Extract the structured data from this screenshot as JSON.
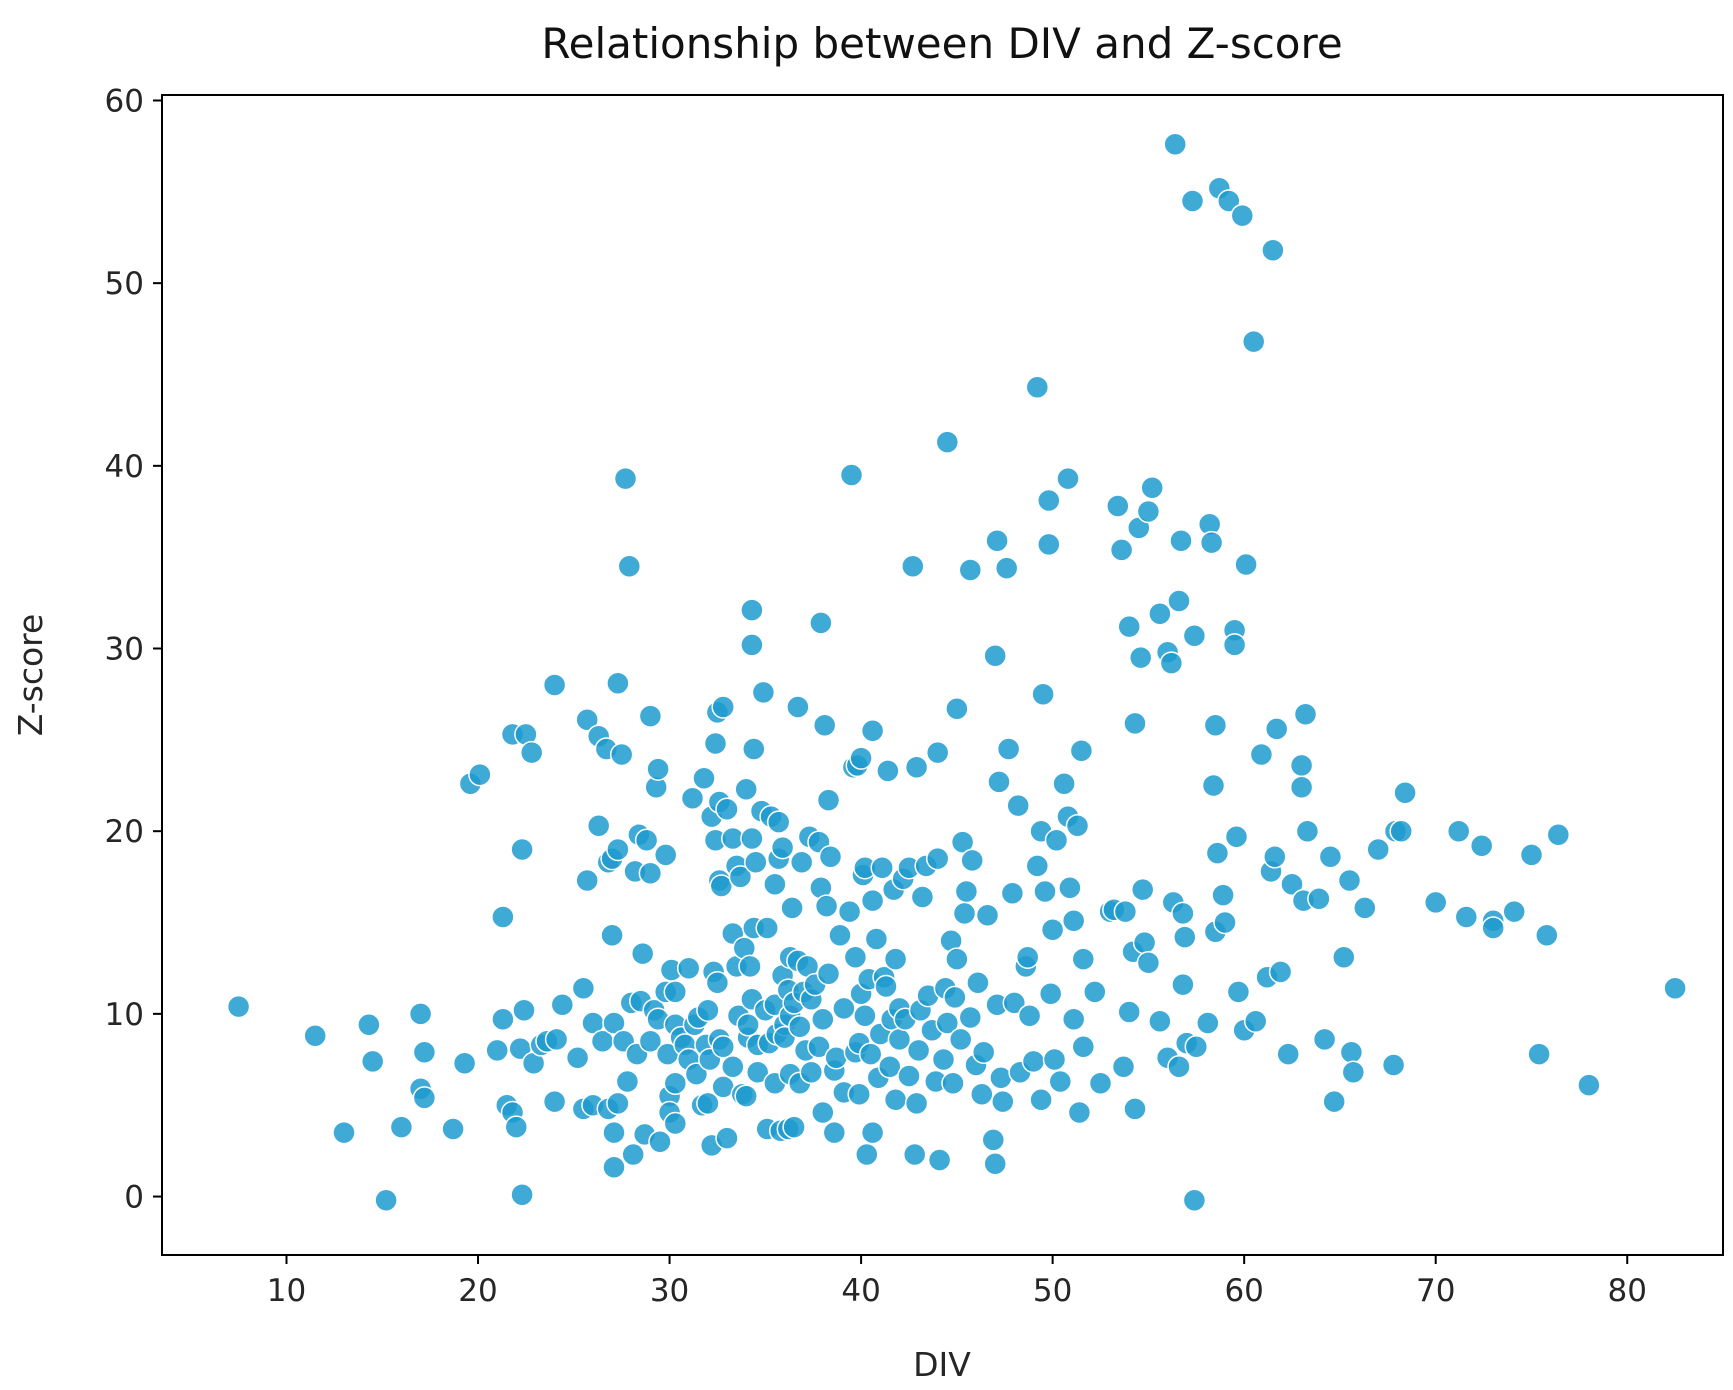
{
  "chart_data": {
    "type": "scatter",
    "title": "Relationship between DIV and Z-score",
    "xlabel": "DIV",
    "ylabel": "Z-score",
    "xlim": [
      3.5,
      85
    ],
    "ylim": [
      -3.2,
      60.3
    ],
    "xticks": [
      10,
      20,
      30,
      40,
      50,
      60,
      70,
      80
    ],
    "xtick_labels": [
      "10",
      "20",
      "30",
      "40",
      "50",
      "60",
      "70",
      "80"
    ],
    "yticks": [
      0,
      10,
      20,
      30,
      40,
      50,
      60
    ],
    "ytick_labels": [
      "0",
      "10",
      "20",
      "30",
      "40",
      "50",
      "60"
    ],
    "grid": false,
    "legend": "none",
    "marker_color": "#1f9bcf",
    "marker_edge": "#ffffff",
    "marker_alpha": 0.85,
    "points": [
      [
        7.5,
        10.4
      ],
      [
        11.5,
        8.8
      ],
      [
        13,
        3.5
      ],
      [
        14.3,
        9.4
      ],
      [
        14.5,
        7.4
      ],
      [
        15.2,
        -0.2
      ],
      [
        16,
        3.8
      ],
      [
        17,
        10
      ],
      [
        17,
        5.9
      ],
      [
        17.2,
        5.4
      ],
      [
        17.2,
        7.9
      ],
      [
        18.7,
        3.7
      ],
      [
        19.3,
        7.3
      ],
      [
        19.6,
        22.6
      ],
      [
        20.1,
        23.1
      ],
      [
        21,
        8
      ],
      [
        21.3,
        15.3
      ],
      [
        21.3,
        9.7
      ],
      [
        21.5,
        5
      ],
      [
        21.8,
        25.3
      ],
      [
        21.8,
        4.6
      ],
      [
        22,
        3.8
      ],
      [
        22.2,
        8.1
      ],
      [
        22.3,
        0.1
      ],
      [
        22.3,
        19
      ],
      [
        22.4,
        10.2
      ],
      [
        22.5,
        25.3
      ],
      [
        22.8,
        24.3
      ],
      [
        22.9,
        7.3
      ],
      [
        23.3,
        8.3
      ],
      [
        23.6,
        8.5
      ],
      [
        24,
        28
      ],
      [
        24,
        5.2
      ],
      [
        24.1,
        8.6
      ],
      [
        24.4,
        10.5
      ],
      [
        25.2,
        7.6
      ],
      [
        25.5,
        11.4
      ],
      [
        25.5,
        4.8
      ],
      [
        25.7,
        26.1
      ],
      [
        25.7,
        17.3
      ],
      [
        26,
        5
      ],
      [
        26,
        9.5
      ],
      [
        26.3,
        20.3
      ],
      [
        26.3,
        25.2
      ],
      [
        26.5,
        8.5
      ],
      [
        26.7,
        24.5
      ],
      [
        26.8,
        4.8
      ],
      [
        26.8,
        18.3
      ],
      [
        27,
        14.3
      ],
      [
        27,
        18.5
      ],
      [
        27.1,
        1.6
      ],
      [
        27.1,
        3.5
      ],
      [
        27.1,
        9.5
      ],
      [
        27.3,
        28.1
      ],
      [
        27.3,
        19
      ],
      [
        27.3,
        5.1
      ],
      [
        27.5,
        24.2
      ],
      [
        27.6,
        8.5
      ],
      [
        27.7,
        39.3
      ],
      [
        27.8,
        6.3
      ],
      [
        27.9,
        34.5
      ],
      [
        28,
        10.6
      ],
      [
        28.1,
        2.3
      ],
      [
        28.2,
        17.8
      ],
      [
        28.3,
        7.8
      ],
      [
        28.4,
        19.8
      ],
      [
        28.5,
        10.7
      ],
      [
        28.6,
        13.3
      ],
      [
        28.7,
        3.4
      ],
      [
        28.8,
        19.5
      ],
      [
        29,
        26.3
      ],
      [
        29,
        8.5
      ],
      [
        29,
        17.7
      ],
      [
        29.2,
        10.2
      ],
      [
        29.3,
        22.4
      ],
      [
        29.4,
        23.4
      ],
      [
        29.4,
        9.7
      ],
      [
        29.5,
        3
      ],
      [
        29.8,
        18.7
      ],
      [
        29.8,
        11.2
      ],
      [
        29.9,
        7.8
      ],
      [
        30,
        5.5
      ],
      [
        30,
        4.6
      ],
      [
        30.1,
        12.4
      ],
      [
        30.3,
        6.2
      ],
      [
        30.3,
        9.4
      ],
      [
        30.3,
        4
      ],
      [
        30.3,
        11.2
      ],
      [
        30.6,
        8.7
      ],
      [
        30.8,
        8.3
      ],
      [
        31,
        12.5
      ],
      [
        31,
        7.5
      ],
      [
        31.2,
        21.8
      ],
      [
        31.3,
        9.4
      ],
      [
        31.4,
        6.7
      ],
      [
        31.5,
        9.8
      ],
      [
        31.7,
        5
      ],
      [
        31.8,
        22.9
      ],
      [
        31.9,
        8.3
      ],
      [
        32,
        10.2
      ],
      [
        32,
        5.1
      ],
      [
        32.1,
        7.5
      ],
      [
        32.2,
        2.8
      ],
      [
        32.2,
        20.8
      ],
      [
        32.3,
        12.3
      ],
      [
        32.4,
        19.5
      ],
      [
        32.4,
        24.8
      ],
      [
        32.5,
        11.7
      ],
      [
        32.5,
        26.5
      ],
      [
        32.6,
        8.6
      ],
      [
        32.6,
        21.6
      ],
      [
        32.6,
        17.3
      ],
      [
        32.7,
        17
      ],
      [
        32.8,
        26.8
      ],
      [
        32.8,
        8.2
      ],
      [
        32.8,
        6
      ],
      [
        33,
        21.2
      ],
      [
        33,
        3.2
      ],
      [
        33.3,
        14.4
      ],
      [
        33.3,
        19.6
      ],
      [
        33.3,
        7.1
      ],
      [
        33.5,
        18.1
      ],
      [
        33.5,
        12.6
      ],
      [
        33.6,
        9.9
      ],
      [
        33.7,
        17.5
      ],
      [
        33.8,
        5.6
      ],
      [
        33.9,
        13.6
      ],
      [
        34,
        22.3
      ],
      [
        34,
        5.5
      ],
      [
        34.1,
        8.7
      ],
      [
        34.1,
        9.4
      ],
      [
        34.2,
        12.6
      ],
      [
        34.3,
        10.8
      ],
      [
        34.3,
        32.1
      ],
      [
        34.3,
        30.2
      ],
      [
        34.3,
        19.6
      ],
      [
        34.4,
        14.7
      ],
      [
        34.4,
        24.5
      ],
      [
        34.5,
        18.3
      ],
      [
        34.6,
        6.8
      ],
      [
        34.6,
        8.3
      ],
      [
        34.8,
        21.1
      ],
      [
        34.9,
        27.6
      ],
      [
        35,
        10.2
      ],
      [
        35.1,
        14.7
      ],
      [
        35.1,
        3.7
      ],
      [
        35.2,
        8.4
      ],
      [
        35.3,
        20.8
      ],
      [
        35.5,
        17.1
      ],
      [
        35.5,
        6.2
      ],
      [
        35.5,
        10.5
      ],
      [
        35.6,
        8.9
      ],
      [
        35.7,
        20.5
      ],
      [
        35.7,
        18.5
      ],
      [
        35.8,
        3.6
      ],
      [
        35.9,
        19.1
      ],
      [
        35.9,
        12.1
      ],
      [
        36,
        9.4
      ],
      [
        36,
        8.7
      ],
      [
        36.2,
        3.7
      ],
      [
        36.2,
        11.3
      ],
      [
        36.3,
        9.9
      ],
      [
        36.3,
        13.1
      ],
      [
        36.3,
        6.7
      ],
      [
        36.4,
        15.8
      ],
      [
        36.5,
        10.6
      ],
      [
        36.5,
        3.8
      ],
      [
        36.7,
        26.8
      ],
      [
        36.7,
        12.9
      ],
      [
        36.8,
        9.3
      ],
      [
        36.8,
        6.2
      ],
      [
        36.9,
        18.3
      ],
      [
        37,
        11.2
      ],
      [
        37.1,
        8
      ],
      [
        37.2,
        12.6
      ],
      [
        37.3,
        19.7
      ],
      [
        37.4,
        6.8
      ],
      [
        37.4,
        10.8
      ],
      [
        37.6,
        11.6
      ],
      [
        37.8,
        19.4
      ],
      [
        37.8,
        8.2
      ],
      [
        37.9,
        31.4
      ],
      [
        37.9,
        16.9
      ],
      [
        38,
        9.7
      ],
      [
        38,
        4.6
      ],
      [
        38.1,
        25.8
      ],
      [
        38.2,
        15.9
      ],
      [
        38.3,
        12.2
      ],
      [
        38.3,
        21.7
      ],
      [
        38.4,
        18.6
      ],
      [
        38.6,
        6.9
      ],
      [
        38.6,
        3.5
      ],
      [
        38.7,
        7.6
      ],
      [
        38.9,
        14.3
      ],
      [
        39.1,
        10.3
      ],
      [
        39.1,
        5.7
      ],
      [
        39.4,
        15.6
      ],
      [
        39.5,
        39.5
      ],
      [
        39.6,
        23.5
      ],
      [
        39.7,
        13.1
      ],
      [
        39.7,
        7.9
      ],
      [
        39.8,
        23.6
      ],
      [
        39.9,
        8.4
      ],
      [
        39.9,
        5.6
      ],
      [
        40,
        11.1
      ],
      [
        40,
        24
      ],
      [
        40.1,
        17.6
      ],
      [
        40.2,
        18
      ],
      [
        40.2,
        9.9
      ],
      [
        40.3,
        2.3
      ],
      [
        40.4,
        11.9
      ],
      [
        40.5,
        7.8
      ],
      [
        40.6,
        25.5
      ],
      [
        40.6,
        16.2
      ],
      [
        40.6,
        3.5
      ],
      [
        40.8,
        14.1
      ],
      [
        40.9,
        6.5
      ],
      [
        41,
        8.9
      ],
      [
        41.1,
        18
      ],
      [
        41.2,
        12
      ],
      [
        41.3,
        11.5
      ],
      [
        41.4,
        23.3
      ],
      [
        41.5,
        7.1
      ],
      [
        41.6,
        9.7
      ],
      [
        41.7,
        16.8
      ],
      [
        41.8,
        13
      ],
      [
        41.8,
        5.3
      ],
      [
        42,
        10.3
      ],
      [
        42,
        8.6
      ],
      [
        42.2,
        17.4
      ],
      [
        42.3,
        9.7
      ],
      [
        42.5,
        6.6
      ],
      [
        42.5,
        18
      ],
      [
        42.7,
        34.5
      ],
      [
        42.8,
        2.3
      ],
      [
        42.9,
        23.5
      ],
      [
        42.9,
        5.1
      ],
      [
        43,
        8
      ],
      [
        43.1,
        10.2
      ],
      [
        43.2,
        16.4
      ],
      [
        43.4,
        18.1
      ],
      [
        43.5,
        11
      ],
      [
        43.7,
        9.1
      ],
      [
        43.9,
        6.3
      ],
      [
        44,
        24.3
      ],
      [
        44,
        18.5
      ],
      [
        44.1,
        2
      ],
      [
        44.3,
        7.5
      ],
      [
        44.4,
        11.4
      ],
      [
        44.5,
        9.5
      ],
      [
        44.5,
        41.3
      ],
      [
        44.7,
        14
      ],
      [
        44.8,
        6.2
      ],
      [
        44.9,
        10.9
      ],
      [
        45,
        26.7
      ],
      [
        45,
        13
      ],
      [
        45.2,
        8.6
      ],
      [
        45.3,
        19.4
      ],
      [
        45.4,
        15.5
      ],
      [
        45.5,
        16.7
      ],
      [
        45.7,
        34.3
      ],
      [
        45.7,
        9.8
      ],
      [
        45.8,
        18.4
      ],
      [
        46,
        7.2
      ],
      [
        46.1,
        11.7
      ],
      [
        46.3,
        5.6
      ],
      [
        46.4,
        7.9
      ],
      [
        46.6,
        15.4
      ],
      [
        46.9,
        3.1
      ],
      [
        47,
        1.8
      ],
      [
        47,
        29.6
      ],
      [
        47.1,
        10.5
      ],
      [
        47.1,
        35.9
      ],
      [
        47.2,
        22.7
      ],
      [
        47.3,
        6.5
      ],
      [
        47.4,
        5.2
      ],
      [
        47.6,
        34.4
      ],
      [
        47.7,
        24.5
      ],
      [
        47.9,
        16.6
      ],
      [
        48,
        10.6
      ],
      [
        48.2,
        21.4
      ],
      [
        48.3,
        6.8
      ],
      [
        48.6,
        12.6
      ],
      [
        48.7,
        13.1
      ],
      [
        48.8,
        9.9
      ],
      [
        49,
        7.4
      ],
      [
        49.2,
        44.3
      ],
      [
        49.2,
        18.1
      ],
      [
        49.4,
        5.3
      ],
      [
        49.4,
        20
      ],
      [
        49.5,
        27.5
      ],
      [
        49.6,
        16.7
      ],
      [
        49.8,
        38.1
      ],
      [
        49.8,
        35.7
      ],
      [
        49.9,
        11.1
      ],
      [
        50,
        14.6
      ],
      [
        50.1,
        7.5
      ],
      [
        50.2,
        19.5
      ],
      [
        50.4,
        6.3
      ],
      [
        50.6,
        22.6
      ],
      [
        50.8,
        39.3
      ],
      [
        50.8,
        20.8
      ],
      [
        50.9,
        16.9
      ],
      [
        51.1,
        15.1
      ],
      [
        51.1,
        9.7
      ],
      [
        51.3,
        20.3
      ],
      [
        51.4,
        4.6
      ],
      [
        51.5,
        24.4
      ],
      [
        51.6,
        13
      ],
      [
        51.6,
        8.2
      ],
      [
        52.2,
        11.2
      ],
      [
        52.5,
        6.2
      ],
      [
        53,
        15.6
      ],
      [
        53.2,
        15.7
      ],
      [
        53.4,
        37.8
      ],
      [
        53.6,
        35.4
      ],
      [
        53.7,
        7.1
      ],
      [
        53.8,
        15.6
      ],
      [
        54,
        10.1
      ],
      [
        54,
        31.2
      ],
      [
        54.2,
        13.4
      ],
      [
        54.3,
        25.9
      ],
      [
        54.3,
        4.8
      ],
      [
        54.5,
        36.6
      ],
      [
        54.6,
        29.5
      ],
      [
        54.7,
        16.8
      ],
      [
        54.8,
        13.9
      ],
      [
        55,
        37.5
      ],
      [
        55,
        12.8
      ],
      [
        55.2,
        38.8
      ],
      [
        55.6,
        31.9
      ],
      [
        55.6,
        9.6
      ],
      [
        56,
        29.8
      ],
      [
        56,
        7.6
      ],
      [
        56.2,
        29.2
      ],
      [
        56.3,
        16.1
      ],
      [
        56.4,
        57.6
      ],
      [
        56.6,
        7.1
      ],
      [
        56.6,
        32.6
      ],
      [
        56.7,
        35.9
      ],
      [
        56.8,
        15.5
      ],
      [
        56.8,
        11.6
      ],
      [
        56.9,
        14.2
      ],
      [
        57,
        8.4
      ],
      [
        57.3,
        54.5
      ],
      [
        57.4,
        30.7
      ],
      [
        57.4,
        -0.2
      ],
      [
        57.5,
        8.2
      ],
      [
        58.1,
        9.5
      ],
      [
        58.2,
        36.8
      ],
      [
        58.3,
        35.8
      ],
      [
        58.4,
        22.5
      ],
      [
        58.5,
        25.8
      ],
      [
        58.5,
        14.5
      ],
      [
        58.6,
        18.8
      ],
      [
        58.7,
        55.2
      ],
      [
        58.9,
        16.5
      ],
      [
        59,
        15
      ],
      [
        59.2,
        54.5
      ],
      [
        59.5,
        31
      ],
      [
        59.5,
        30.2
      ],
      [
        59.6,
        19.7
      ],
      [
        59.7,
        11.2
      ],
      [
        59.9,
        53.7
      ],
      [
        60,
        9.1
      ],
      [
        60.1,
        34.6
      ],
      [
        60.5,
        46.8
      ],
      [
        60.6,
        9.6
      ],
      [
        60.9,
        24.2
      ],
      [
        61.2,
        12
      ],
      [
        61.4,
        17.8
      ],
      [
        61.5,
        51.8
      ],
      [
        61.6,
        18.6
      ],
      [
        61.7,
        25.6
      ],
      [
        61.9,
        12.3
      ],
      [
        62.3,
        7.8
      ],
      [
        62.5,
        17.1
      ],
      [
        63,
        23.6
      ],
      [
        63,
        22.4
      ],
      [
        63.1,
        16.2
      ],
      [
        63.2,
        26.4
      ],
      [
        63.3,
        20
      ],
      [
        63.9,
        16.3
      ],
      [
        64.2,
        8.6
      ],
      [
        64.5,
        18.6
      ],
      [
        64.7,
        5.2
      ],
      [
        65.2,
        13.1
      ],
      [
        65.5,
        17.3
      ],
      [
        65.6,
        7.9
      ],
      [
        65.7,
        6.8
      ],
      [
        66.3,
        15.8
      ],
      [
        67,
        19
      ],
      [
        67.8,
        7.2
      ],
      [
        67.9,
        20
      ],
      [
        68.2,
        20
      ],
      [
        68.4,
        22.1
      ],
      [
        70,
        16.1
      ],
      [
        71.2,
        20
      ],
      [
        71.6,
        15.3
      ],
      [
        72.4,
        19.2
      ],
      [
        73,
        15.1
      ],
      [
        73,
        14.7
      ],
      [
        74.1,
        15.6
      ],
      [
        75,
        18.7
      ],
      [
        75.4,
        7.8
      ],
      [
        75.8,
        14.3
      ],
      [
        76.4,
        19.8
      ],
      [
        78,
        6.1
      ],
      [
        82.5,
        11.4
      ]
    ]
  }
}
